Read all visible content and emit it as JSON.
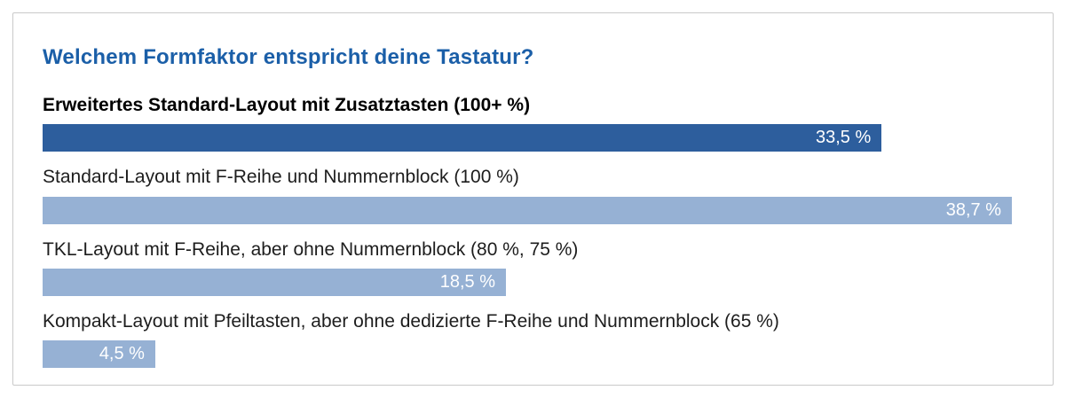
{
  "chart_data": {
    "type": "bar",
    "orientation": "horizontal",
    "title": "Welchem Formfaktor entspricht deine Tastatur?",
    "value_suffix": "%",
    "scale": "bars scaled relative to maximum value (38.7 fills full width)",
    "options": [
      {
        "label": "Erweitertes Standard-Layout mit Zusatztasten (100+ %)",
        "value": 33.5,
        "value_label": "33,5 %",
        "highlighted": true
      },
      {
        "label": "Standard-Layout mit F-Reihe und Nummernblock (100 %)",
        "value": 38.7,
        "value_label": "38,7 %",
        "highlighted": false
      },
      {
        "label": "TKL-Layout mit F-Reihe, aber ohne Nummernblock (80 %, 75 %)",
        "value": 18.5,
        "value_label": "18,5 %",
        "highlighted": false
      },
      {
        "label": "Kompakt-Layout mit Pfeiltasten, aber ohne dedizierte F-Reihe und Nummernblock (65 %)",
        "value": 4.5,
        "value_label": "4,5 %",
        "highlighted": false
      }
    ],
    "colors": {
      "title": "#1b5fa8",
      "bar": "#96b1d4",
      "bar_highlighted": "#2d5e9d",
      "value_text": "#ffffff",
      "label_text": "#1d1d1d",
      "card_border": "#c9c9c9",
      "background": "#ffffff"
    },
    "legend_position": "none",
    "grid": false
  }
}
